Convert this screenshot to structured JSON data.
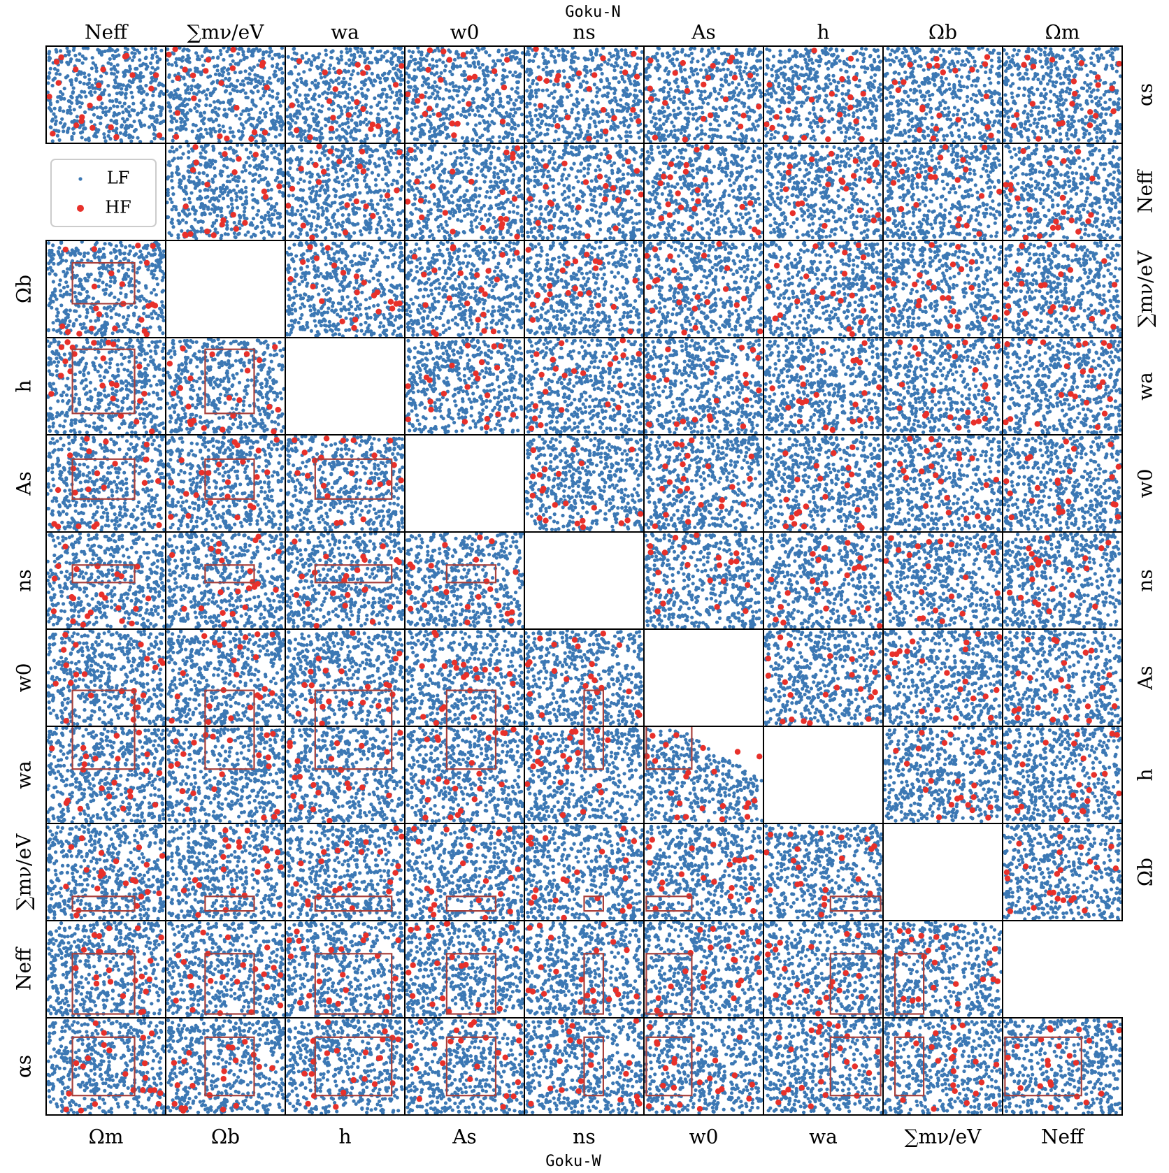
{
  "chart_data": {
    "type": "scatter",
    "subtype": "corner-pair-grid",
    "title_top": "Goku-N",
    "title_bottom": "Goku-W",
    "legend": {
      "placement": "upper-left",
      "entries": [
        {
          "label": "LF",
          "color": "#3c78b4",
          "marker": "small-dot"
        },
        {
          "label": "HF",
          "color": "#e8302a",
          "marker": "large-dot"
        }
      ]
    },
    "colors": {
      "lf": "#3c78b4",
      "hf": "#e8302a",
      "box": "#a8403c",
      "frame": "#000000"
    },
    "upper_triangle": {
      "name": "Goku-N",
      "column_labels": [
        "Neff",
        "∑mν/eV",
        "wa",
        "w0",
        "ns",
        "As",
        "h",
        "Ωb",
        "Ωm"
      ],
      "row_labels": [
        "αs",
        "Neff",
        "∑mν/eV",
        "wa",
        "w0",
        "ns",
        "As",
        "h",
        "Ωb"
      ]
    },
    "lower_triangle": {
      "name": "Goku-W",
      "column_labels": [
        "Ωm",
        "Ωb",
        "h",
        "As",
        "ns",
        "w0",
        "wa",
        "∑mν/eV",
        "Neff"
      ],
      "row_labels": [
        "Ωb",
        "h",
        "As",
        "ns",
        "w0",
        "wa",
        "∑mν/eV",
        "Neff",
        "αs"
      ]
    },
    "samples": {
      "lf_points_per_panel": 520,
      "hf_points_per_panel": 22
    },
    "narrow_prior_boxes": "red rectangles in lower panels mark the Goku-N prior range within Goku-W",
    "grid": false
  }
}
